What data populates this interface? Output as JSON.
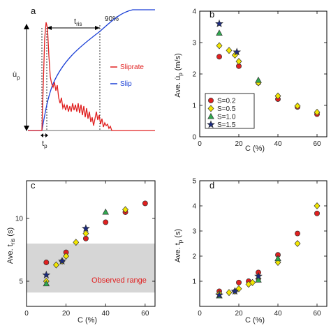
{
  "chart_data": [
    {
      "panel": "a",
      "type": "line",
      "title": "",
      "xlabel": "",
      "ylabel": "u̇p",
      "annotations": [
        "tris",
        "90%",
        "tp"
      ],
      "series": [
        {
          "name": "Sliprate",
          "color": "#e02020"
        },
        {
          "name": "Slip",
          "color": "#1a3fd6"
        }
      ]
    },
    {
      "panel": "b",
      "type": "scatter",
      "xlabel": "C (%)",
      "ylabel": "Ave. u̇p (m/s)",
      "xlim": [
        0,
        65
      ],
      "ylim": [
        0,
        4
      ],
      "xticks": [
        0,
        20,
        40,
        60
      ],
      "yticks": [
        0,
        1,
        2,
        3,
        4
      ],
      "legend": "bottom-left",
      "series": [
        {
          "name": "S=0.2",
          "marker": "circle",
          "color": "#e02020",
          "x": [
            10,
            20,
            30,
            40,
            50,
            60
          ],
          "y": [
            2.55,
            2.25,
            1.72,
            1.2,
            0.95,
            0.72
          ]
        },
        {
          "name": "S=0.5",
          "marker": "diamond",
          "color": "#f2e600",
          "x": [
            10,
            15,
            18,
            20,
            30,
            40,
            50,
            60
          ],
          "y": [
            2.9,
            2.75,
            2.6,
            2.4,
            1.72,
            1.3,
            0.98,
            0.78
          ]
        },
        {
          "name": "S=1.0",
          "marker": "triangle",
          "color": "#2fa84f",
          "x": [
            10,
            30
          ],
          "y": [
            3.3,
            1.8
          ]
        },
        {
          "name": "S=1.5",
          "marker": "star",
          "color": "#1a2a80",
          "x": [
            10,
            19
          ],
          "y": [
            3.6,
            2.7
          ]
        }
      ]
    },
    {
      "panel": "c",
      "type": "scatter",
      "xlabel": "C (%)",
      "ylabel": "Ave. tris (s)",
      "xlim": [
        0,
        65
      ],
      "ylim": [
        3,
        13
      ],
      "xticks": [
        0,
        20,
        40,
        60
      ],
      "yticks": [
        5,
        10
      ],
      "shaded_band": {
        "y0": 4.1,
        "y1": 8.0,
        "label": "Observed range"
      },
      "series": [
        {
          "name": "S=0.2",
          "marker": "circle",
          "color": "#e02020",
          "x": [
            10,
            20,
            30,
            40,
            50,
            60
          ],
          "y": [
            6.5,
            7.3,
            8.4,
            9.7,
            10.5,
            11.2
          ]
        },
        {
          "name": "S=0.5",
          "marker": "diamond",
          "color": "#f2e600",
          "x": [
            10,
            15,
            18,
            20,
            25,
            30,
            50
          ],
          "y": [
            5.0,
            6.3,
            6.6,
            7.0,
            8.1,
            8.8,
            10.7
          ]
        },
        {
          "name": "S=1.0",
          "marker": "triangle",
          "color": "#2fa84f",
          "x": [
            10,
            40
          ],
          "y": [
            4.8,
            10.5
          ]
        },
        {
          "name": "S=1.5",
          "marker": "star",
          "color": "#1a2a80",
          "x": [
            10,
            18,
            30
          ],
          "y": [
            5.5,
            6.6,
            9.2
          ]
        }
      ]
    },
    {
      "panel": "d",
      "type": "scatter",
      "xlabel": "C (%)",
      "ylabel": "Ave. tp (s)",
      "xlim": [
        0,
        65
      ],
      "ylim": [
        0,
        5
      ],
      "xticks": [
        0,
        20,
        40,
        60
      ],
      "yticks": [
        1,
        2,
        3,
        4,
        5
      ],
      "series": [
        {
          "name": "S=0.2",
          "marker": "circle",
          "color": "#e02020",
          "x": [
            10,
            20,
            25,
            30,
            40,
            50,
            60
          ],
          "y": [
            0.6,
            0.95,
            1.0,
            1.35,
            2.05,
            2.9,
            3.7
          ]
        },
        {
          "name": "S=0.5",
          "marker": "diamond",
          "color": "#f2e600",
          "x": [
            10,
            15,
            18,
            20,
            25,
            27,
            30,
            40,
            50,
            60
          ],
          "y": [
            0.5,
            0.55,
            0.6,
            0.7,
            0.88,
            0.95,
            1.1,
            1.75,
            2.5,
            4.0
          ]
        },
        {
          "name": "S=1.0",
          "marker": "triangle",
          "color": "#2fa84f",
          "x": [
            10,
            30,
            40
          ],
          "y": [
            0.42,
            1.05,
            1.9
          ]
        },
        {
          "name": "S=1.5",
          "marker": "star",
          "color": "#1a2a80",
          "x": [
            10,
            18,
            30
          ],
          "y": [
            0.45,
            0.6,
            1.2
          ]
        }
      ]
    }
  ],
  "labels": {
    "a": "a",
    "b": "b",
    "c": "c",
    "d": "d",
    "tris": "t",
    "tris_sub": "ris",
    "pct90": "90%",
    "tp": "t",
    "tp_sub": "p",
    "up": "u̇",
    "up_sub": "p",
    "sliprate": "Sliprate",
    "slip": "Slip",
    "b_ylabel_pre": "Ave. u̇",
    "b_ylabel_sub": "p",
    "b_ylabel_post": " (m/s)",
    "c_ylabel_pre": "Ave. t",
    "c_ylabel_sub": "ris",
    "c_ylabel_post": " (s)",
    "d_ylabel_pre": "Ave. t",
    "d_ylabel_sub": "p",
    "d_ylabel_post": " (s)",
    "xlabel": "C (%)",
    "observed": "Observed range"
  }
}
